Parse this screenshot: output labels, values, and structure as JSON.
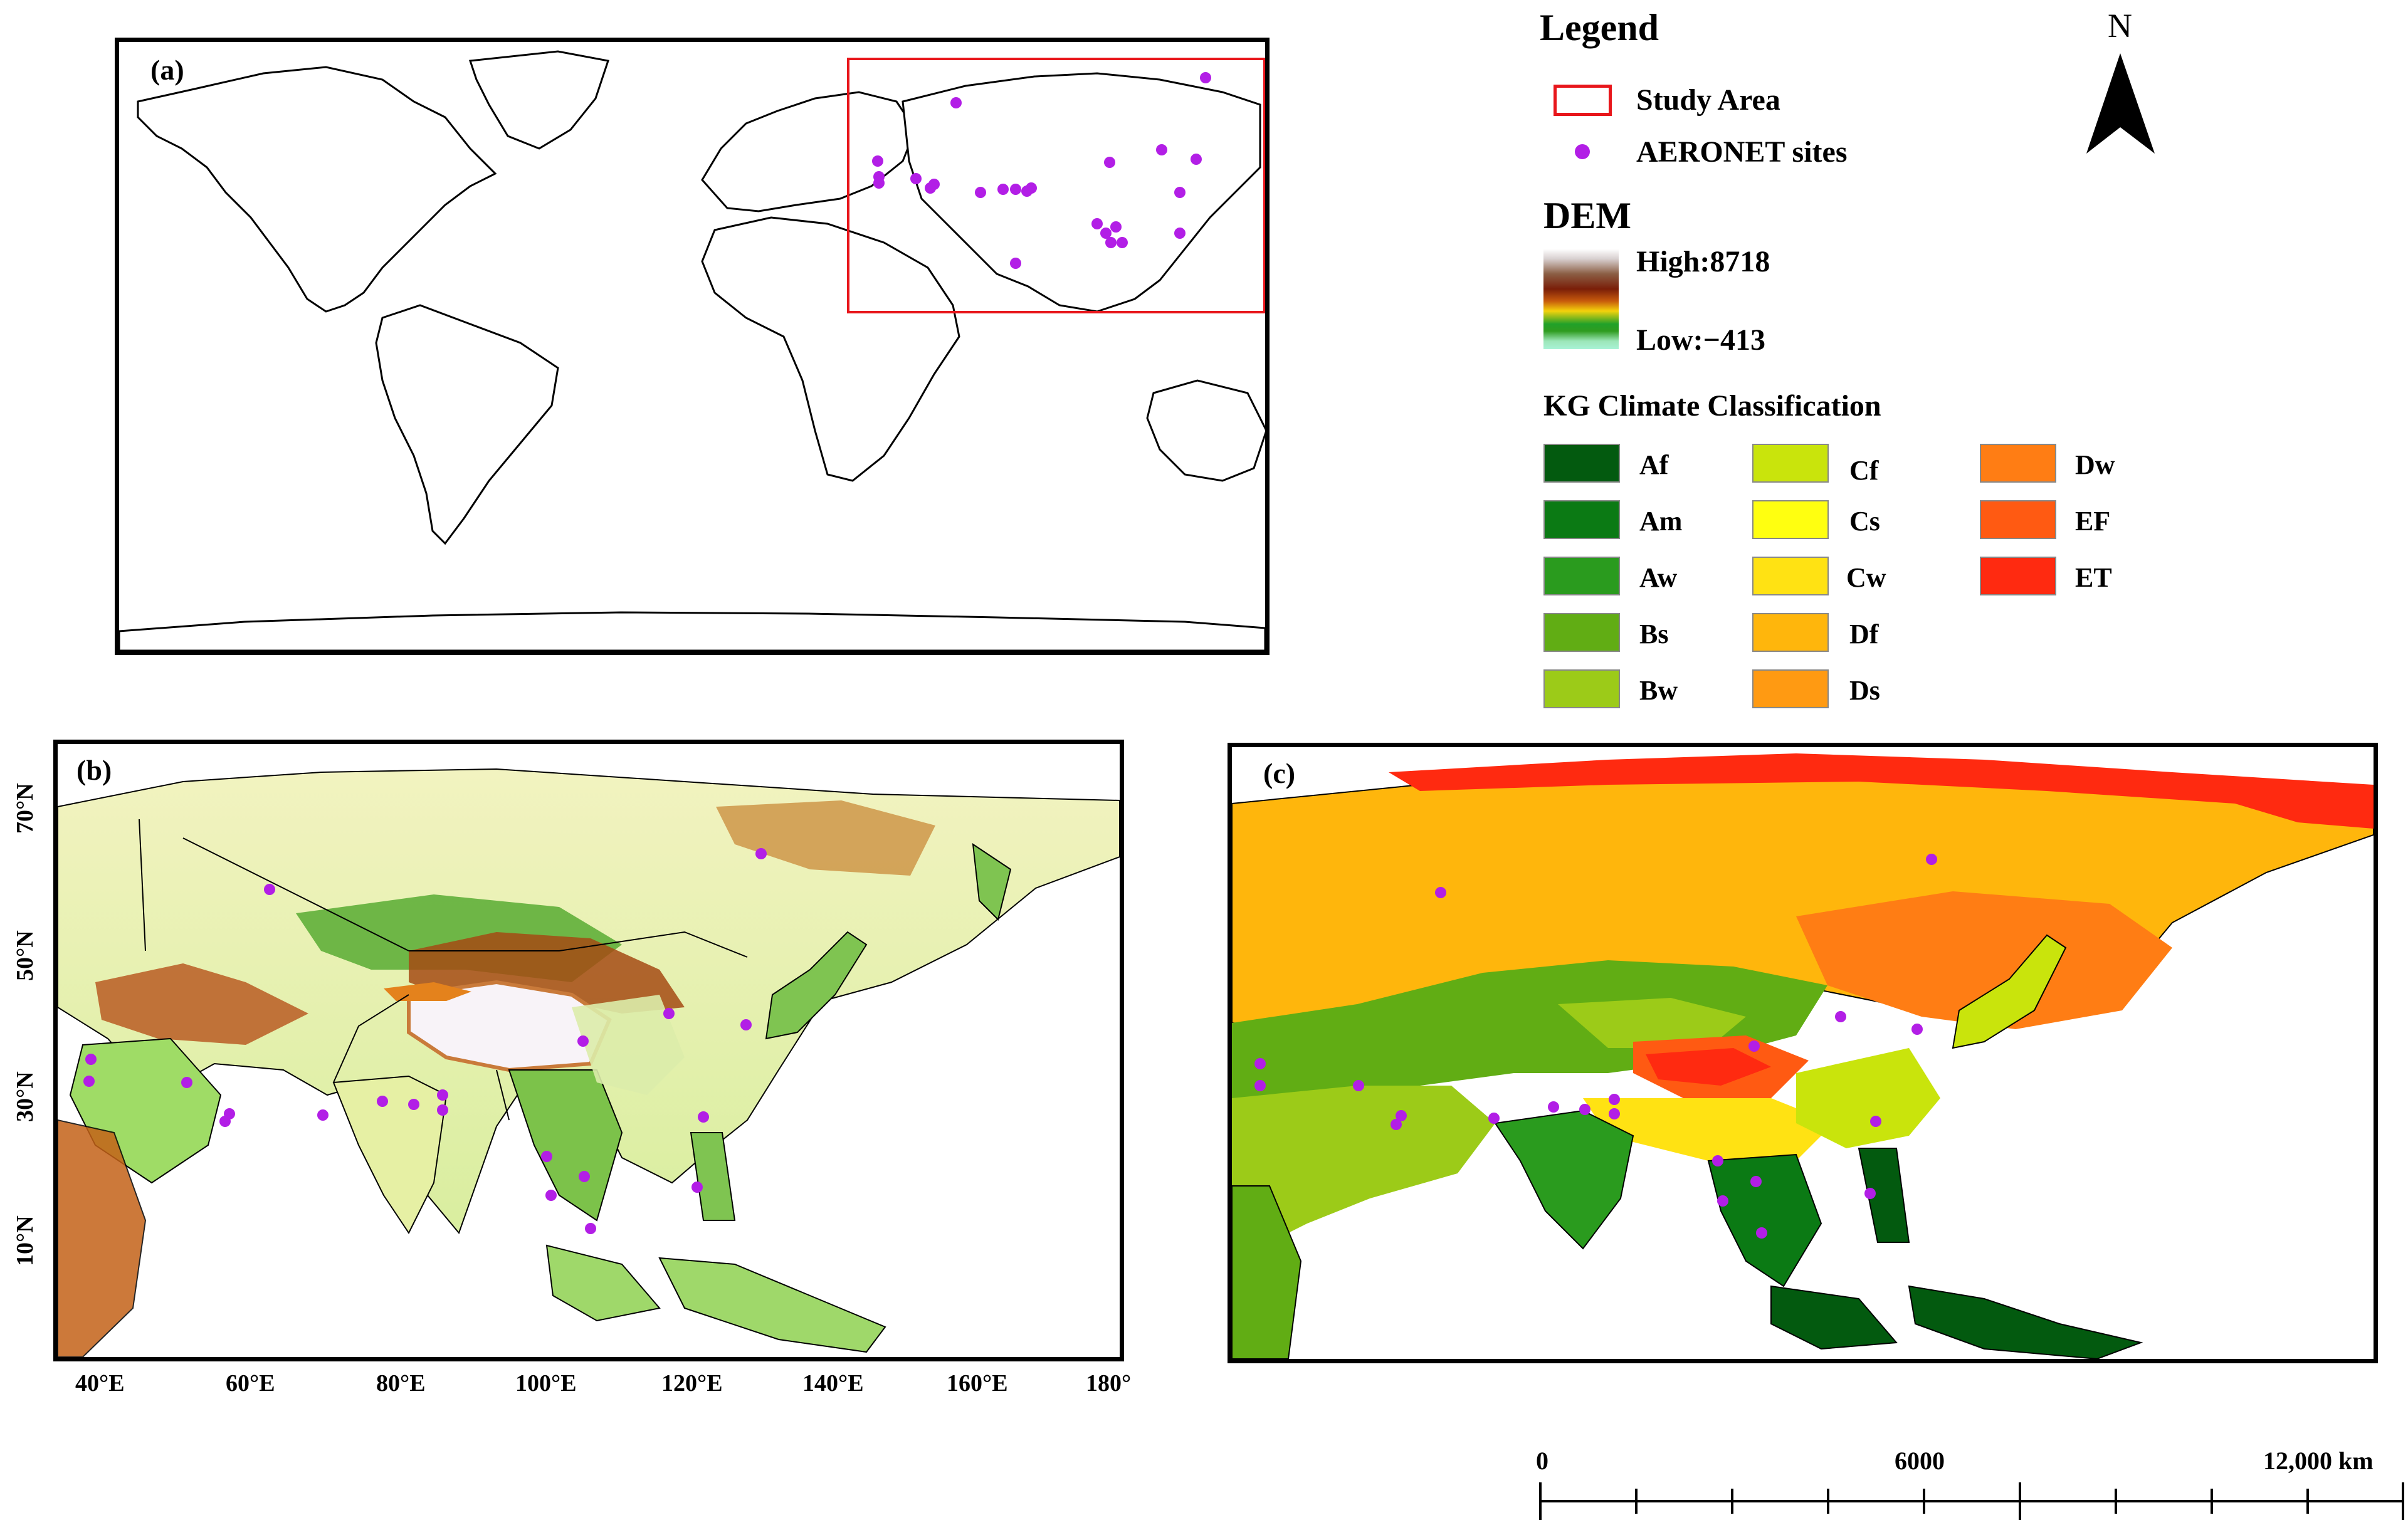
{
  "panels": {
    "a": {
      "label": "(a)"
    },
    "b": {
      "label": "(b)"
    },
    "c": {
      "label": "(c)"
    }
  },
  "legend": {
    "title": "Legend",
    "study_area": "Study Area",
    "aeronet": "AERONET sites",
    "study_area_color": "#e8161b",
    "site_color": "#b21ee6"
  },
  "north": {
    "label": "N"
  },
  "dem": {
    "title": "DEM",
    "high": "High:8718",
    "low": "Low:−413"
  },
  "kg": {
    "title": "KG Climate Classification",
    "classes": [
      {
        "code": "Af",
        "color": "#035a0f"
      },
      {
        "code": "Am",
        "color": "#0b7a14"
      },
      {
        "code": "Aw",
        "color": "#2a9b1e"
      },
      {
        "code": "Bs",
        "color": "#61ad14"
      },
      {
        "code": "Bw",
        "color": "#9ccb18"
      },
      {
        "code": "Cf",
        "color": "#c9e40c"
      },
      {
        "code": "Cs",
        "color": "#ffff10"
      },
      {
        "code": "Cw",
        "color": "#ffe213"
      },
      {
        "code": "Df",
        "color": "#ffb60c"
      },
      {
        "code": "Ds",
        "color": "#ff9a12"
      },
      {
        "code": "Dw",
        "color": "#ff7d14"
      },
      {
        "code": "EF",
        "color": "#ff5a12"
      },
      {
        "code": "ET",
        "color": "#ff2a10"
      }
    ]
  },
  "axes_b": {
    "x_ticks": [
      "40°E",
      "60°E",
      "80°E",
      "100°E",
      "120°E",
      "140°E",
      "160°E",
      "180°"
    ],
    "y_ticks": [
      "70°N",
      "50°N",
      "30°N",
      "10°N"
    ]
  },
  "scale_bar": {
    "labels": [
      "0",
      "6000",
      "12,000 km"
    ]
  }
}
